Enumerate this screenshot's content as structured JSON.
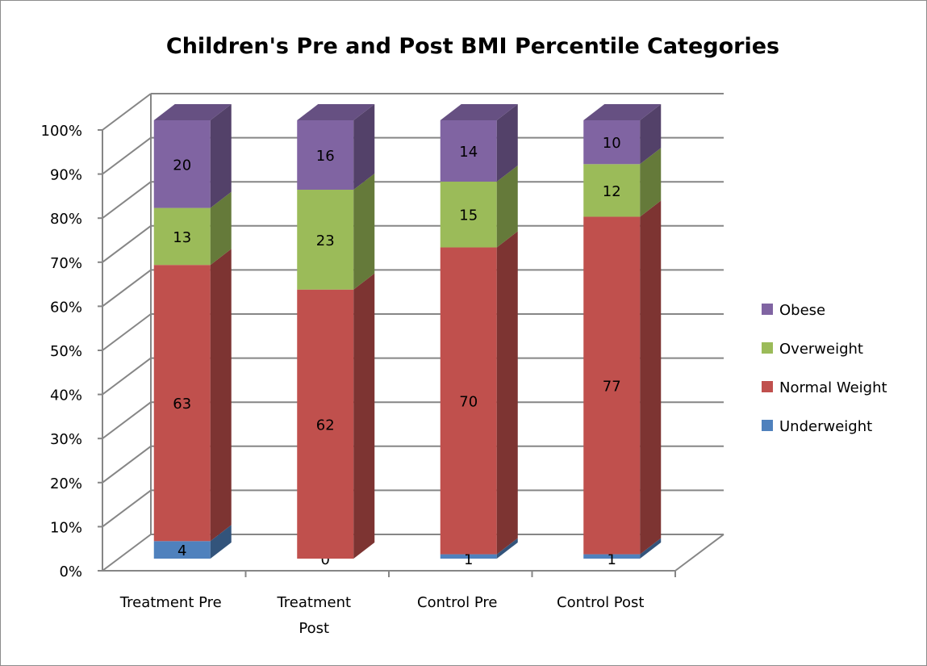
{
  "chart_data": {
    "type": "bar",
    "stacked": true,
    "percent_stacked": true,
    "three_d": true,
    "title": "Children's Pre and Post BMI Percentile Categories",
    "categories": [
      [
        "Treatment Pre"
      ],
      [
        "Treatment",
        "Post"
      ],
      [
        "Control Pre"
      ],
      [
        "Control Post"
      ]
    ],
    "series": [
      {
        "name": "Underweight",
        "color": "#4f81bd",
        "values": [
          4,
          0,
          1,
          1
        ]
      },
      {
        "name": "Normal Weight",
        "color": "#c0504d",
        "values": [
          63,
          62,
          70,
          77
        ]
      },
      {
        "name": "Overweight",
        "color": "#9bbb59",
        "values": [
          13,
          23,
          15,
          12
        ]
      },
      {
        "name": "Obese",
        "color": "#8064a2",
        "values": [
          20,
          16,
          14,
          10
        ]
      }
    ],
    "y_ticks": [
      "0%",
      "10%",
      "20%",
      "30%",
      "40%",
      "50%",
      "60%",
      "70%",
      "80%",
      "90%",
      "100%"
    ],
    "ylim": [
      0,
      100
    ],
    "grid": true,
    "legend_position": "right",
    "legend_order": [
      "Obese",
      "Overweight",
      "Normal Weight",
      "Underweight"
    ]
  }
}
